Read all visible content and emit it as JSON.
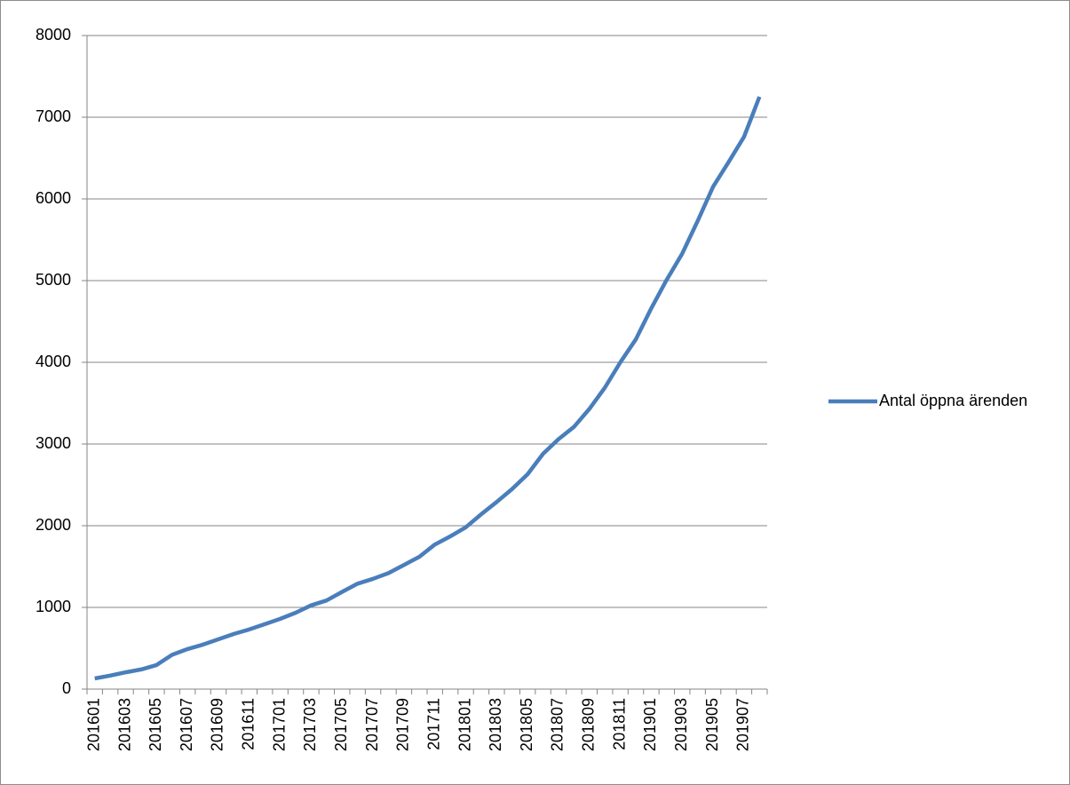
{
  "chart_data": {
    "type": "line",
    "categories": [
      "201601",
      null,
      "201603",
      null,
      "201605",
      null,
      "201607",
      null,
      "201609",
      null,
      "201611",
      null,
      "201701",
      null,
      "201703",
      null,
      "201705",
      null,
      "201707",
      null,
      "201709",
      null,
      "201711",
      null,
      "201801",
      null,
      "201803",
      null,
      "201805",
      null,
      "201807",
      null,
      "201809",
      null,
      "201811",
      null,
      "201901",
      null,
      "201903",
      null,
      "201905",
      null,
      "201907",
      null
    ],
    "series": [
      {
        "name": "Antal öppna ärenden",
        "color": "#4a7ebb",
        "values": [
          130,
          165,
          205,
          240,
          295,
          420,
          490,
          545,
          610,
          675,
          730,
          795,
          860,
          935,
          1025,
          1085,
          1190,
          1290,
          1350,
          1420,
          1520,
          1620,
          1770,
          1870,
          1980,
          2140,
          2290,
          2450,
          2630,
          2880,
          3060,
          3210,
          3430,
          3690,
          4000,
          4280,
          4660,
          5010,
          5330,
          5730,
          6150,
          6450,
          6760,
          7250
        ]
      }
    ],
    "ylim": [
      0,
      8000
    ],
    "yticks": [
      0,
      1000,
      2000,
      3000,
      4000,
      5000,
      6000,
      7000,
      8000
    ],
    "grid": true,
    "legend": "right"
  }
}
